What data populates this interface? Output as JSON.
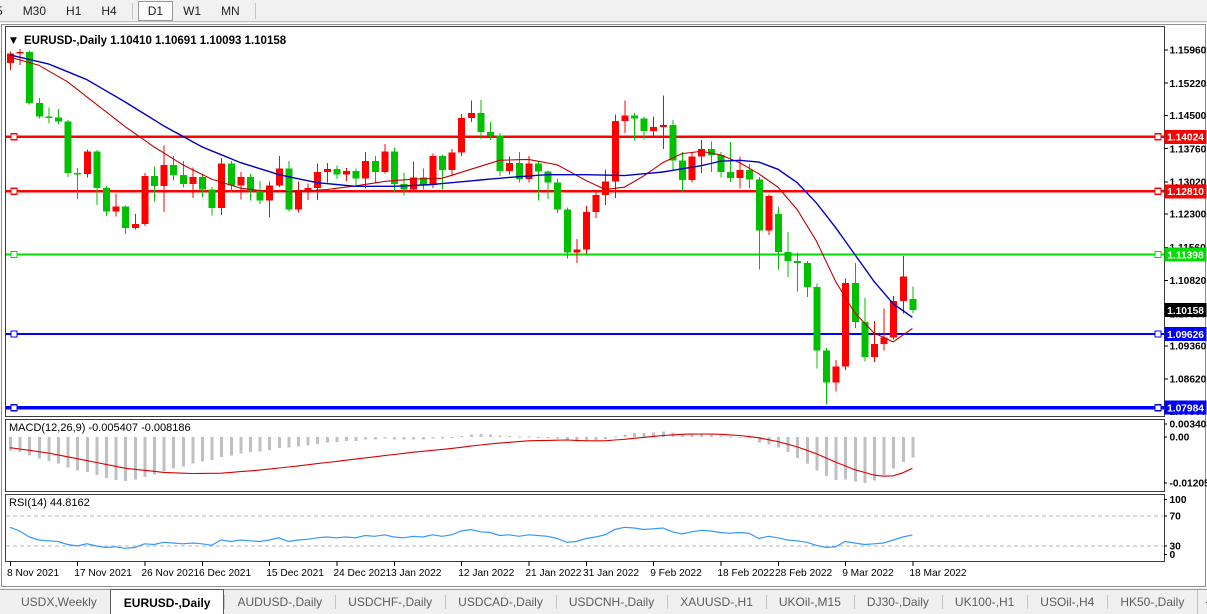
{
  "toolbar": {
    "items": [
      "5",
      "M30",
      "H1",
      "H4",
      "|",
      "D1",
      "W1",
      "MN",
      "|"
    ],
    "active": "D1"
  },
  "chart": {
    "dropdown_icon": "▼",
    "title_line": "EURUSD-,Daily  1.10410 1.10691 1.10093 1.10158"
  },
  "panels": {
    "macd": {
      "label": "MACD(12,26,9) -0.005407 -0.008186",
      "axis_labels": [
        {
          "v": 0.003408,
          "text": "0.003408"
        },
        {
          "v": 0.0,
          "text": "0.00"
        },
        {
          "v": -0.012058,
          "text": "-0.012058"
        }
      ]
    },
    "rsi": {
      "label": "RSI(14) 44.8162",
      "axis_labels": [
        {
          "v": 100,
          "text": "100"
        },
        {
          "v": 70,
          "text": "70"
        },
        {
          "v": 30,
          "text": "30"
        },
        {
          "v": 0,
          "text": "0"
        }
      ]
    }
  },
  "tabs": {
    "items": [
      {
        "label": "USDX,Weekly",
        "active": false
      },
      {
        "label": "EURUSD-,Daily",
        "active": true
      },
      {
        "label": "AUDUSD-,Daily",
        "active": false
      },
      {
        "label": "USDCHF-,Daily",
        "active": false
      },
      {
        "label": "USDCAD-,Daily",
        "active": false
      },
      {
        "label": "USDCNH-,Daily",
        "active": false
      },
      {
        "label": "XAUUSD-,H1",
        "active": false
      },
      {
        "label": "UKOil-,M15",
        "active": false
      },
      {
        "label": "DJ30-,Daily",
        "active": false
      },
      {
        "label": "UK100-,H1",
        "active": false
      },
      {
        "label": "USOil-,H4",
        "active": false
      },
      {
        "label": "HK50-,Daily",
        "active": false
      }
    ],
    "scroll_left": "◂",
    "scroll_right": "▸"
  },
  "chart_data": {
    "type": "candlestick",
    "symbol": "EURUSD-",
    "timeframe": "Daily",
    "last_ohlc": {
      "open": 1.1041,
      "high": 1.10691,
      "low": 1.10093,
      "close": 1.10158
    },
    "price_range_visible": [
      1.078,
      1.1636
    ],
    "price_axis_ticks": [
      1.1596,
      1.1522,
      1.145,
      1.1376,
      1.1302,
      1.123,
      1.1156,
      1.1082,
      1.1008,
      1.0936,
      1.0862,
      1.079
    ],
    "current_price": {
      "value": 1.10158,
      "color": "#000000"
    },
    "horizontal_levels": [
      {
        "price": 1.14024,
        "color": "#ff0000",
        "width": 2
      },
      {
        "price": 1.1281,
        "color": "#ff0000",
        "width": 2
      },
      {
        "price": 1.11398,
        "color": "#00dd00",
        "width": 2
      },
      {
        "price": 1.09626,
        "color": "#0000ff",
        "width": 2
      },
      {
        "price": 1.07984,
        "color": "#0000ff",
        "width": 3
      }
    ],
    "colors": {
      "bull": "#ff0000",
      "bear": "#00c000",
      "ma_slow": "#0000c0",
      "ma_fast": "#c00000",
      "macd_hist": "#c0c0c0",
      "macd_signal": "#dd0000",
      "rsi_line": "#3399ff",
      "rsi_levels": "#b4b4b4"
    },
    "x_labels": [
      {
        "text": "8 Nov 2021",
        "index": 0
      },
      {
        "text": "17 Nov 2021",
        "index": 7
      },
      {
        "text": "26 Nov 2021",
        "index": 14
      },
      {
        "text": "6 Dec 2021",
        "index": 20
      },
      {
        "text": "15 Dec 2021",
        "index": 27
      },
      {
        "text": "24 Dec 2021",
        "index": 34
      },
      {
        "text": "3 Jan 2022",
        "index": 40
      },
      {
        "text": "12 Jan 2022",
        "index": 47
      },
      {
        "text": "21 Jan 2022",
        "index": 54
      },
      {
        "text": "31 Jan 2022",
        "index": 60
      },
      {
        "text": "9 Feb 2022",
        "index": 67
      },
      {
        "text": "18 Feb 2022",
        "index": 74
      },
      {
        "text": "28 Feb 2022",
        "index": 80
      },
      {
        "text": "9 Mar 2022",
        "index": 87
      },
      {
        "text": "18 Mar 2022",
        "index": 94
      }
    ],
    "candles": [
      [
        1.1567,
        1.1593,
        1.1551,
        1.1588
      ],
      [
        1.1588,
        1.1598,
        1.1563,
        1.1592
      ],
      [
        1.1592,
        1.1595,
        1.1475,
        1.1478
      ],
      [
        1.1478,
        1.1489,
        1.1443,
        1.1448
      ],
      [
        1.1448,
        1.1468,
        1.1432,
        1.1445
      ],
      [
        1.1445,
        1.1464,
        1.1431,
        1.1437
      ],
      [
        1.1437,
        1.144,
        1.1313,
        1.1322
      ],
      [
        1.1322,
        1.1333,
        1.1264,
        1.1319
      ],
      [
        1.1319,
        1.1374,
        1.1312,
        1.137
      ],
      [
        1.137,
        1.1373,
        1.125,
        1.1288
      ],
      [
        1.1288,
        1.1293,
        1.1226,
        1.1236
      ],
      [
        1.1236,
        1.1275,
        1.1225,
        1.1247
      ],
      [
        1.1247,
        1.1249,
        1.1186,
        1.1199
      ],
      [
        1.1199,
        1.123,
        1.1196,
        1.1208
      ],
      [
        1.1208,
        1.1322,
        1.1203,
        1.1315
      ],
      [
        1.1315,
        1.1336,
        1.1258,
        1.1293
      ],
      [
        1.1293,
        1.1383,
        1.1235,
        1.1339
      ],
      [
        1.1339,
        1.136,
        1.1305,
        1.1317
      ],
      [
        1.1317,
        1.1348,
        1.1289,
        1.1297
      ],
      [
        1.1297,
        1.1334,
        1.1266,
        1.1313
      ],
      [
        1.1313,
        1.1319,
        1.1267,
        1.1285
      ],
      [
        1.1285,
        1.129,
        1.1227,
        1.1244
      ],
      [
        1.1244,
        1.1355,
        1.1228,
        1.1343
      ],
      [
        1.1343,
        1.1349,
        1.1278,
        1.1294
      ],
      [
        1.1294,
        1.1324,
        1.1263,
        1.1313
      ],
      [
        1.1313,
        1.132,
        1.126,
        1.1283
      ],
      [
        1.1283,
        1.1304,
        1.1253,
        1.126
      ],
      [
        1.126,
        1.1303,
        1.1222,
        1.1294
      ],
      [
        1.1294,
        1.136,
        1.129,
        1.1332
      ],
      [
        1.1332,
        1.1349,
        1.1236,
        1.124
      ],
      [
        1.124,
        1.1303,
        1.1234,
        1.128
      ],
      [
        1.128,
        1.1298,
        1.1262,
        1.1288
      ],
      [
        1.1288,
        1.1343,
        1.1262,
        1.1324
      ],
      [
        1.1324,
        1.1344,
        1.13,
        1.1331
      ],
      [
        1.1331,
        1.1338,
        1.1308,
        1.1318
      ],
      [
        1.1318,
        1.1333,
        1.1304,
        1.1326
      ],
      [
        1.1326,
        1.1332,
        1.1291,
        1.131
      ],
      [
        1.131,
        1.1369,
        1.1287,
        1.1349
      ],
      [
        1.1349,
        1.136,
        1.1298,
        1.1324
      ],
      [
        1.1324,
        1.1386,
        1.1321,
        1.137
      ],
      [
        1.137,
        1.1379,
        1.1279,
        1.1297
      ],
      [
        1.1297,
        1.1323,
        1.1272,
        1.1285
      ],
      [
        1.1285,
        1.1347,
        1.128,
        1.1312
      ],
      [
        1.1312,
        1.1332,
        1.1285,
        1.1295
      ],
      [
        1.1295,
        1.1365,
        1.1288,
        1.136
      ],
      [
        1.136,
        1.1363,
        1.1285,
        1.1328
      ],
      [
        1.1328,
        1.1375,
        1.1314,
        1.1367
      ],
      [
        1.1367,
        1.1453,
        1.136,
        1.1444
      ],
      [
        1.1444,
        1.1483,
        1.1435,
        1.1455
      ],
      [
        1.1455,
        1.1484,
        1.1398,
        1.1413
      ],
      [
        1.1413,
        1.1435,
        1.1395,
        1.1405
      ],
      [
        1.1405,
        1.1411,
        1.1315,
        1.1326
      ],
      [
        1.1326,
        1.1358,
        1.1318,
        1.1344
      ],
      [
        1.1344,
        1.1369,
        1.1301,
        1.1308
      ],
      [
        1.1308,
        1.136,
        1.13,
        1.1343
      ],
      [
        1.1343,
        1.1349,
        1.126,
        1.1325
      ],
      [
        1.1325,
        1.1327,
        1.1264,
        1.1301
      ],
      [
        1.1301,
        1.131,
        1.1233,
        1.124
      ],
      [
        1.124,
        1.1245,
        1.1131,
        1.1144
      ],
      [
        1.1144,
        1.1174,
        1.1121,
        1.1151
      ],
      [
        1.1151,
        1.1248,
        1.1141,
        1.1235
      ],
      [
        1.1235,
        1.1279,
        1.1221,
        1.1273
      ],
      [
        1.1273,
        1.133,
        1.125,
        1.1303
      ],
      [
        1.1303,
        1.1452,
        1.1266,
        1.1438
      ],
      [
        1.1438,
        1.1483,
        1.1411,
        1.145
      ],
      [
        1.145,
        1.1456,
        1.1394,
        1.1443
      ],
      [
        1.1443,
        1.1448,
        1.1396,
        1.1415
      ],
      [
        1.1415,
        1.1448,
        1.1403,
        1.1424
      ],
      [
        1.1424,
        1.1495,
        1.1375,
        1.1429
      ],
      [
        1.1429,
        1.144,
        1.133,
        1.135
      ],
      [
        1.135,
        1.1369,
        1.128,
        1.1306
      ],
      [
        1.1306,
        1.1368,
        1.1301,
        1.1358
      ],
      [
        1.1358,
        1.1395,
        1.1322,
        1.1375
      ],
      [
        1.1375,
        1.1392,
        1.1324,
        1.1362
      ],
      [
        1.1362,
        1.1369,
        1.1312,
        1.1324
      ],
      [
        1.1324,
        1.1391,
        1.1302,
        1.1311
      ],
      [
        1.1311,
        1.1359,
        1.1287,
        1.1328
      ],
      [
        1.1328,
        1.1342,
        1.1287,
        1.1307
      ],
      [
        1.1307,
        1.1313,
        1.1106,
        1.1193
      ],
      [
        1.1193,
        1.1274,
        1.1184,
        1.127
      ],
      [
        1.123,
        1.1246,
        1.1106,
        1.1146
      ],
      [
        1.1146,
        1.119,
        1.109,
        1.1125
      ],
      [
        1.1125,
        1.1144,
        1.1058,
        1.1121
      ],
      [
        1.1121,
        1.1125,
        1.1045,
        1.1067
      ],
      [
        1.1067,
        1.1075,
        1.0886,
        1.0926
      ],
      [
        1.0926,
        1.0932,
        1.0806,
        1.0855
      ],
      [
        1.0855,
        1.0905,
        1.0834,
        1.089
      ],
      [
        1.089,
        1.1086,
        1.0882,
        1.1076
      ],
      [
        1.1076,
        1.1121,
        1.0976,
        1.0989
      ],
      [
        1.0989,
        1.1043,
        1.0901,
        1.0911
      ],
      [
        1.0911,
        1.0992,
        1.09,
        1.094
      ],
      [
        1.094,
        1.102,
        1.0926,
        1.0955
      ],
      [
        1.0955,
        1.1047,
        1.095,
        1.1036
      ],
      [
        1.1036,
        1.1137,
        1.1008,
        1.1091
      ],
      [
        1.1041,
        1.1069,
        1.1009,
        1.1016
      ]
    ],
    "ma_slow_blue": [
      [
        0,
        1.1585
      ],
      [
        4,
        1.1565
      ],
      [
        8,
        1.153
      ],
      [
        12,
        1.148
      ],
      [
        16,
        1.1427
      ],
      [
        20,
        1.138
      ],
      [
        24,
        1.1345
      ],
      [
        28,
        1.1318
      ],
      [
        32,
        1.13
      ],
      [
        36,
        1.1292
      ],
      [
        40,
        1.1292
      ],
      [
        44,
        1.1296
      ],
      [
        48,
        1.1304
      ],
      [
        52,
        1.1312
      ],
      [
        56,
        1.1318
      ],
      [
        60,
        1.1318
      ],
      [
        64,
        1.1316
      ],
      [
        68,
        1.1324
      ],
      [
        72,
        1.1338
      ],
      [
        74,
        1.1348
      ],
      [
        76,
        1.135
      ],
      [
        78,
        1.1346
      ],
      [
        80,
        1.133
      ],
      [
        82,
        1.13
      ],
      [
        84,
        1.1255
      ],
      [
        86,
        1.12
      ],
      [
        88,
        1.114
      ],
      [
        90,
        1.108
      ],
      [
        92,
        1.103
      ],
      [
        94,
        1.1
      ]
    ],
    "ma_fast_red": [
      [
        0,
        1.158
      ],
      [
        3,
        1.1562
      ],
      [
        6,
        1.1525
      ],
      [
        9,
        1.1475
      ],
      [
        12,
        1.1425
      ],
      [
        15,
        1.138
      ],
      [
        18,
        1.134
      ],
      [
        21,
        1.1308
      ],
      [
        24,
        1.1288
      ],
      [
        27,
        1.128
      ],
      [
        30,
        1.128
      ],
      [
        33,
        1.1285
      ],
      [
        36,
        1.1293
      ],
      [
        39,
        1.1303
      ],
      [
        42,
        1.1308
      ],
      [
        45,
        1.131
      ],
      [
        48,
        1.133
      ],
      [
        51,
        1.135
      ],
      [
        54,
        1.1352
      ],
      [
        57,
        1.134
      ],
      [
        60,
        1.1305
      ],
      [
        62,
        1.1285
      ],
      [
        64,
        1.129
      ],
      [
        66,
        1.1315
      ],
      [
        68,
        1.1345
      ],
      [
        70,
        1.1365
      ],
      [
        72,
        1.137
      ],
      [
        74,
        1.1362
      ],
      [
        76,
        1.1345
      ],
      [
        78,
        1.132
      ],
      [
        80,
        1.129
      ],
      [
        82,
        1.124
      ],
      [
        84,
        1.117
      ],
      [
        86,
        1.108
      ],
      [
        88,
        1.101
      ],
      [
        90,
        1.0965
      ],
      [
        92,
        1.0945
      ],
      [
        94,
        1.0975
      ]
    ],
    "macd": {
      "current_main": -0.005407,
      "current_signal": -0.008186,
      "y_range": [
        -0.012058,
        0.003408
      ],
      "histogram": [
        -0.0035,
        -0.004,
        -0.0048,
        -0.0056,
        -0.0063,
        -0.007,
        -0.008,
        -0.0088,
        -0.0092,
        -0.01,
        -0.0108,
        -0.0113,
        -0.0115,
        -0.0112,
        -0.0105,
        -0.0098,
        -0.009,
        -0.0083,
        -0.0077,
        -0.007,
        -0.0064,
        -0.006,
        -0.0052,
        -0.0048,
        -0.0043,
        -0.004,
        -0.0038,
        -0.0034,
        -0.0029,
        -0.0028,
        -0.0025,
        -0.0022,
        -0.0018,
        -0.0015,
        -0.0013,
        -0.0011,
        -0.001,
        -0.0007,
        -0.0006,
        -0.0004,
        -0.0006,
        -0.0007,
        -0.0006,
        -0.0006,
        -0.0004,
        -0.0004,
        -0.0002,
        0.0003,
        0.0007,
        0.0008,
        0.0007,
        0.0004,
        0.0003,
        0.0001,
        0.0001,
        0.0,
        -0.0001,
        -0.0004,
        -0.0009,
        -0.0012,
        -0.0011,
        -0.0008,
        -0.0005,
        0.0001,
        0.0007,
        0.001,
        0.0011,
        0.0012,
        0.0014,
        0.0012,
        0.0008,
        0.0006,
        0.0006,
        0.0005,
        0.0003,
        0.0001,
        0.0,
        -0.0002,
        -0.0015,
        -0.002,
        -0.0028,
        -0.004,
        -0.0055,
        -0.007,
        -0.0088,
        -0.0103,
        -0.0113,
        -0.0112,
        -0.0117,
        -0.0121,
        -0.0114,
        -0.01,
        -0.0083,
        -0.0066,
        -0.005407
      ],
      "signal": [
        [
          0,
          -0.0028
        ],
        [
          4,
          -0.0042
        ],
        [
          8,
          -0.0062
        ],
        [
          12,
          -0.0082
        ],
        [
          16,
          -0.0093
        ],
        [
          19,
          -0.0096
        ],
        [
          22,
          -0.0095
        ],
        [
          26,
          -0.0087
        ],
        [
          30,
          -0.0076
        ],
        [
          34,
          -0.0064
        ],
        [
          38,
          -0.0052
        ],
        [
          42,
          -0.004
        ],
        [
          46,
          -0.003
        ],
        [
          50,
          -0.0018
        ],
        [
          54,
          -0.001
        ],
        [
          58,
          -0.0008
        ],
        [
          60,
          -0.001
        ],
        [
          62,
          -0.001
        ],
        [
          64,
          -0.0006
        ],
        [
          66,
          -0.0001
        ],
        [
          68,
          0.0004
        ],
        [
          70,
          0.0007
        ],
        [
          72,
          0.0008
        ],
        [
          74,
          0.0007
        ],
        [
          76,
          0.0004
        ],
        [
          78,
          -0.0002
        ],
        [
          80,
          -0.0012
        ],
        [
          82,
          -0.0026
        ],
        [
          84,
          -0.0044
        ],
        [
          86,
          -0.0066
        ],
        [
          88,
          -0.0086
        ],
        [
          90,
          -0.01
        ],
        [
          91,
          -0.0103
        ],
        [
          92,
          -0.0102
        ],
        [
          93,
          -0.0094
        ],
        [
          94,
          -0.008186
        ]
      ]
    },
    "rsi": {
      "period": 14,
      "current": 44.8162,
      "levels": [
        70,
        30
      ],
      "y_range": [
        0,
        100
      ],
      "values": [
        55,
        50,
        42,
        38,
        37,
        36,
        32,
        30,
        33,
        30,
        28,
        29,
        27,
        28,
        33,
        32,
        35,
        34,
        33,
        34,
        33,
        31,
        38,
        36,
        38,
        37,
        36,
        38,
        41,
        36,
        38,
        39,
        41,
        42,
        41,
        42,
        41,
        44,
        43,
        45,
        42,
        41,
        43,
        42,
        45,
        43,
        45,
        50,
        52,
        49,
        48,
        44,
        45,
        43,
        45,
        44,
        43,
        40,
        35,
        36,
        40,
        42,
        45,
        52,
        55,
        54,
        52,
        53,
        54,
        49,
        46,
        49,
        51,
        50,
        48,
        47,
        48,
        47,
        40,
        43,
        41,
        38,
        37,
        35,
        31,
        28,
        29,
        36,
        34,
        32,
        33,
        34,
        38,
        42,
        44.8
      ]
    }
  }
}
